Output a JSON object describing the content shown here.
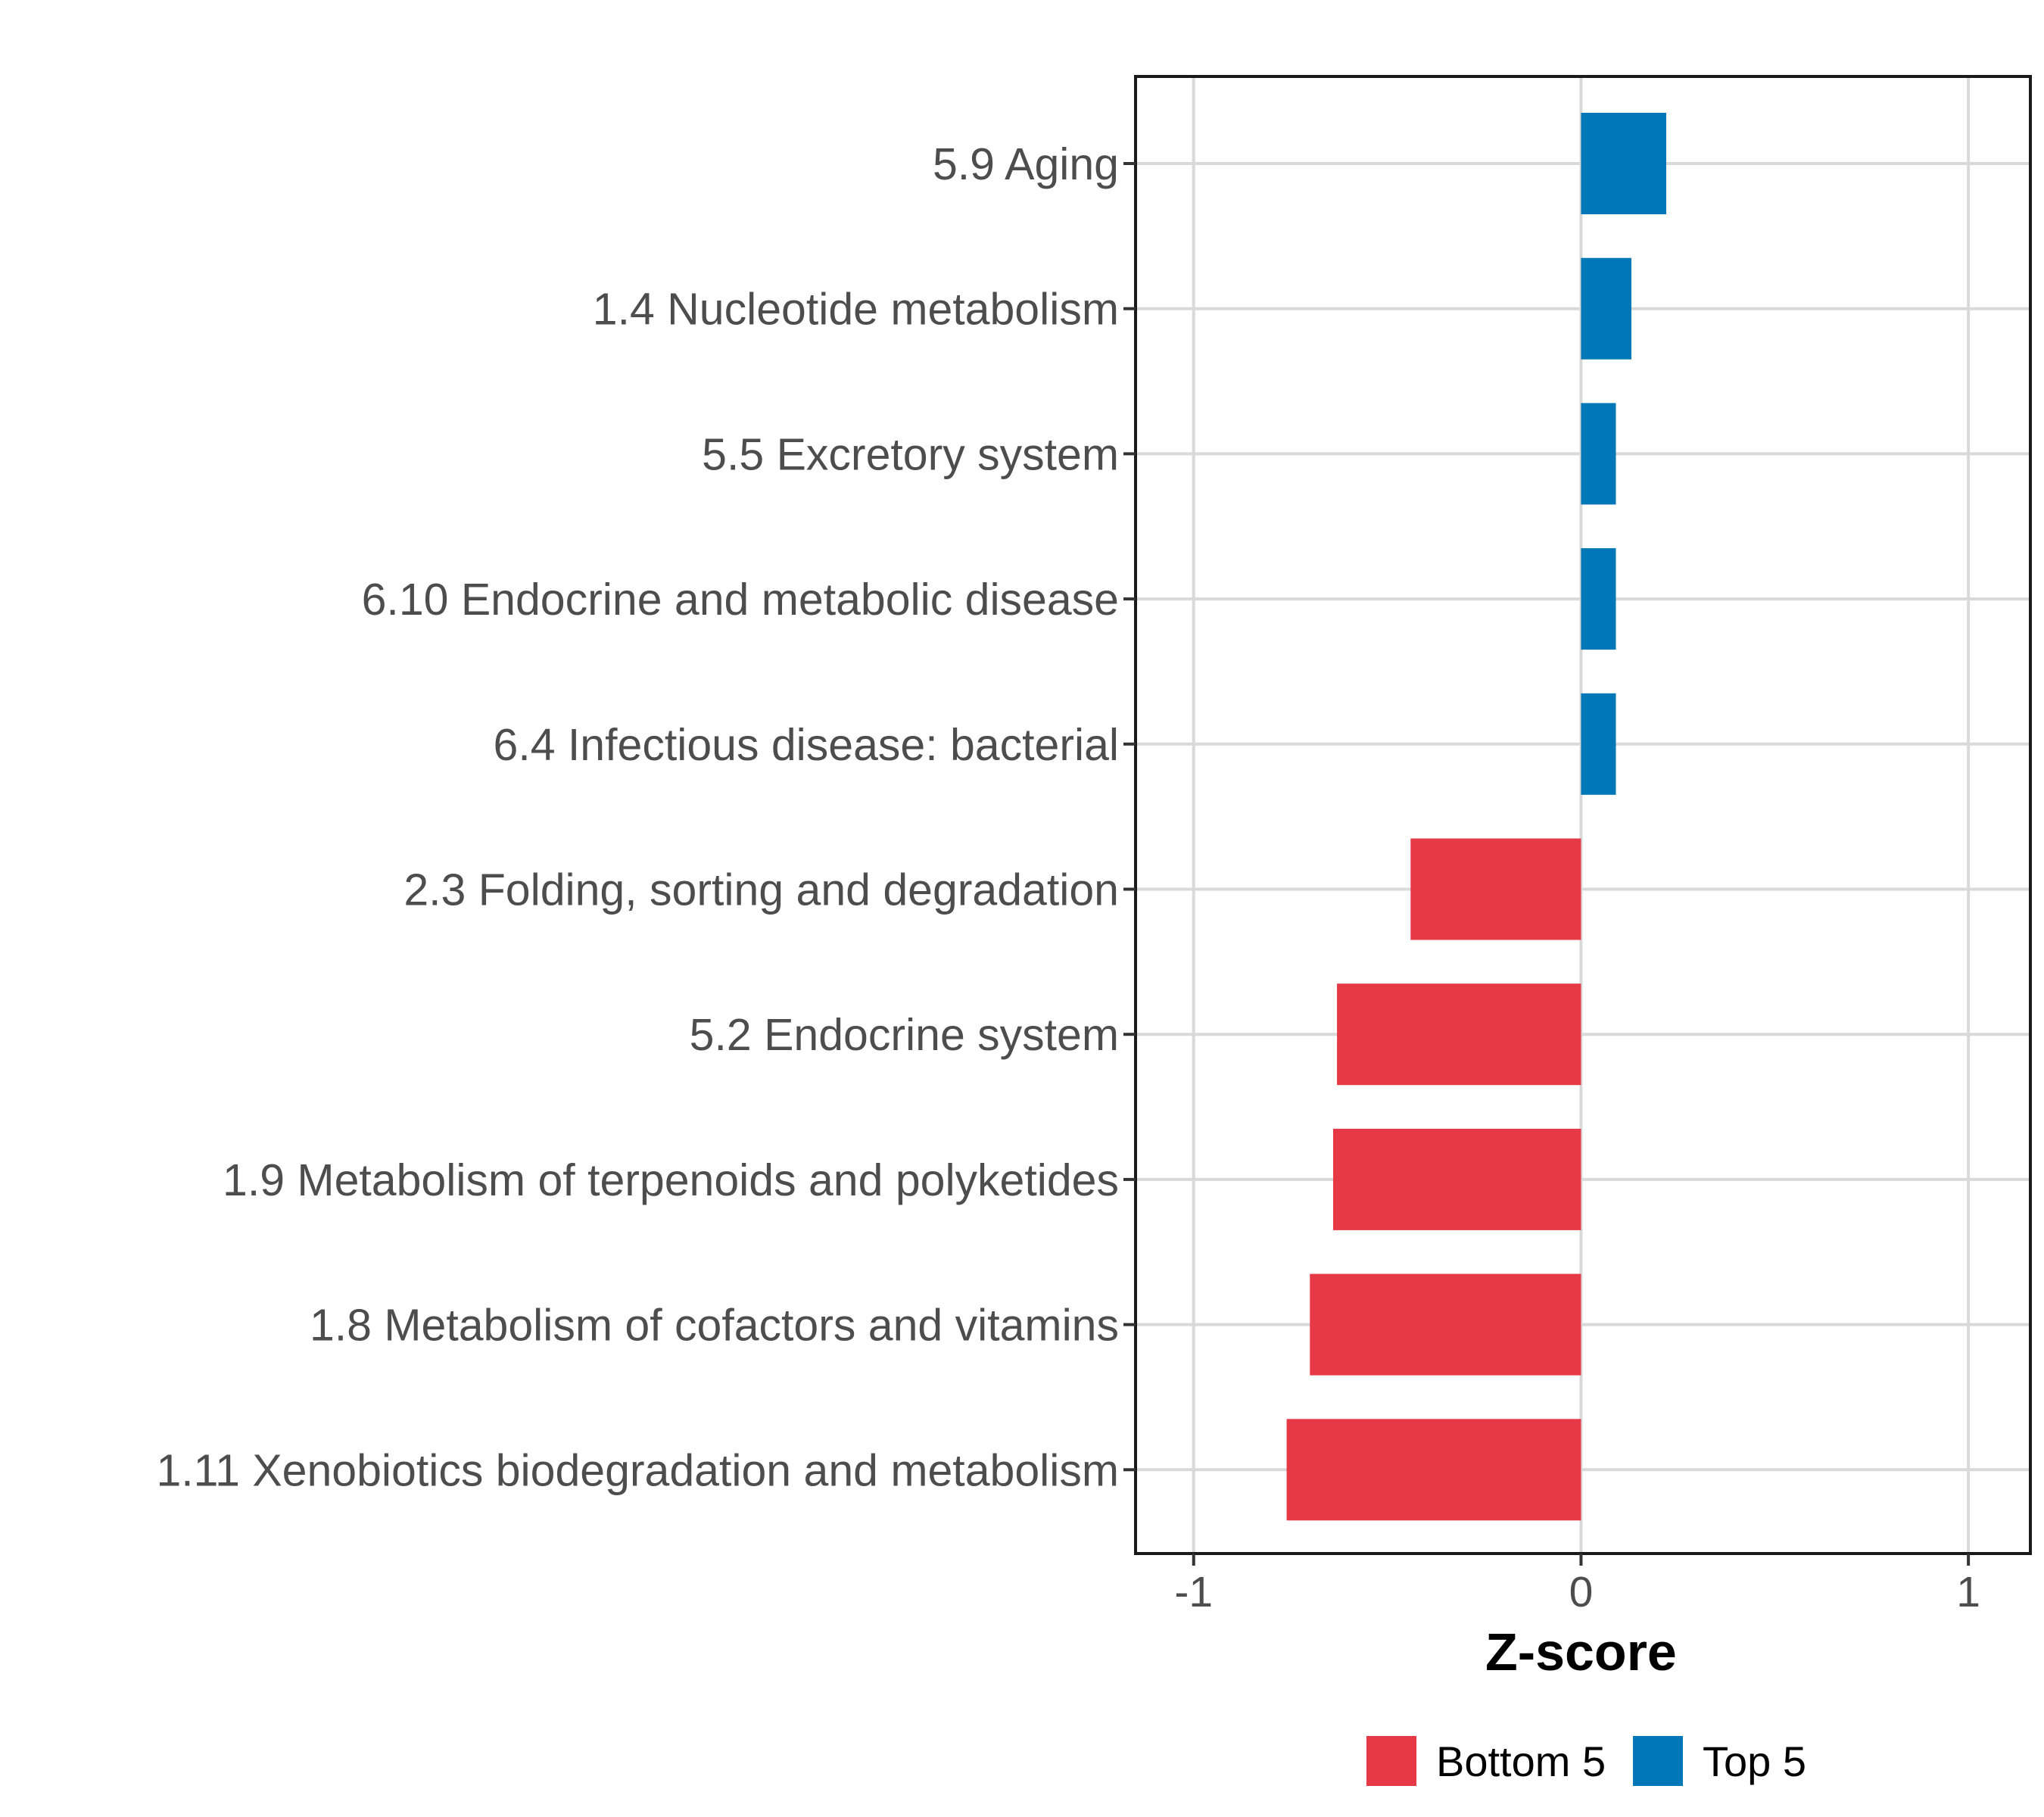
{
  "chart_data": {
    "type": "bar",
    "orientation": "horizontal",
    "title": "",
    "xlabel": "Z-score",
    "ylabel": "",
    "xlim": [
      -1.15,
      1.16
    ],
    "xticks": [
      -1,
      0,
      1
    ],
    "xtick_labels": [
      "-1",
      "0",
      "1"
    ],
    "grid": true,
    "legend_position": "bottom",
    "categories": [
      "5.9 Aging",
      "1.4 Nucleotide metabolism",
      "5.5 Excretory system",
      "6.10 Endocrine and metabolic disease",
      "6.4 Infectious disease: bacterial",
      "2.3 Folding, sorting and degradation",
      "5.2 Endocrine system",
      "1.9 Metabolism of terpenoids and polyketides",
      "1.8 Metabolism of cofactors and vitamins",
      "1.11 Xenobiotics biodegradation and metabolism"
    ],
    "values": [
      0.22,
      0.13,
      0.09,
      0.09,
      0.09,
      -0.44,
      -0.63,
      -0.64,
      -0.7,
      -0.76
    ],
    "groups": [
      "Top 5",
      "Top 5",
      "Top 5",
      "Top 5",
      "Top 5",
      "Bottom 5",
      "Bottom 5",
      "Bottom 5",
      "Bottom 5",
      "Bottom 5"
    ],
    "legend": [
      {
        "name": "Bottom 5",
        "color": "#e63946"
      },
      {
        "name": "Top 5",
        "color": "#0077b6"
      }
    ]
  }
}
